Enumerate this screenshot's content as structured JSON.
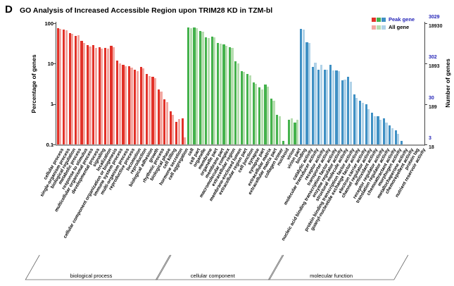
{
  "panel_label": "D",
  "title": "GO Analysis of Increased Accessible Region upon TRIM28 KD in TZM-bl",
  "legend": {
    "peak_label": "Peak gene",
    "all_label": "All gene"
  },
  "chart_data": {
    "type": "bar",
    "scale": "log",
    "ylim": [
      0.1,
      100
    ],
    "grid": false,
    "ylabel_left": "Percentage of genes",
    "ylabel_right": "Number of genes",
    "left_ticks": [
      "100",
      "10",
      "1",
      "0.1"
    ],
    "right_ticks": [
      {
        "peak": "3029",
        "all": "18930"
      },
      {
        "peak": "302",
        "all": "1893"
      },
      {
        "peak": "30",
        "all": "189"
      },
      {
        "peak": "3",
        "all": "18"
      }
    ],
    "series_names": [
      "Peak gene",
      "All gene"
    ],
    "groups": [
      {
        "name": "biological process",
        "peak_color": "#e23128",
        "all_color": "#f3a7a1",
        "categories": [
          "cellular process",
          "single-organism process",
          "biological regulation",
          "metabolic process",
          "response to stimulus",
          "multicellular organismal process",
          "developmental process",
          "signaling",
          "localization",
          "cellular component organization or biogenesis",
          "immune system process",
          "multi-organism process",
          "reproductive process",
          "locomotion",
          "reproduction",
          "biological adhesion",
          "growth",
          "rhythmic process",
          "biological phase",
          "cell killing",
          "hormone secretion",
          "cell aggregation"
        ],
        "peak": [
          75,
          70,
          57,
          48,
          36,
          29,
          28.5,
          25.5,
          25,
          27.5,
          12,
          9.5,
          8.7,
          7.2,
          8.2,
          5.5,
          4.8,
          2.3,
          1.3,
          0.65,
          0.36,
          0.45
        ],
        "all": [
          72,
          67,
          54,
          51,
          33,
          27,
          25,
          24,
          24,
          26,
          10,
          8.5,
          8.0,
          6.5,
          7.5,
          5.0,
          4.4,
          2.0,
          1.1,
          0.55,
          0.42,
          0.15
        ]
      },
      {
        "name": "cellular component",
        "peak_color": "#44b24c",
        "all_color": "#b6ddb0",
        "categories": [
          "cell",
          "cell part",
          "organelle",
          "membrane",
          "organelle part",
          "membrane part",
          "macromolecular complex",
          "extracellular region",
          "membrane-enclosed lumen",
          "extracellular region part",
          "cell junction",
          "synapse",
          "synapse part",
          "extracellular matrix",
          "extracellular matrix part",
          "collagen trimer",
          "nucleoid",
          "virion",
          "virion part"
        ],
        "peak": [
          80,
          80,
          65,
          45,
          47,
          33,
          30,
          26,
          11.5,
          6.5,
          5.5,
          3.4,
          2.6,
          3.0,
          1.35,
          0.55,
          0.12,
          0.4,
          0.35
        ],
        "all": [
          77,
          77,
          61,
          43,
          44,
          31,
          28,
          24.5,
          10,
          6.2,
          5.1,
          3.1,
          2.3,
          2.7,
          1.2,
          0.5,
          0.1,
          0.45,
          0.4
        ]
      },
      {
        "name": "molecular function",
        "peak_color": "#3f90c4",
        "all_color": "#b0d2e8",
        "categories": [
          "binding",
          "catalytic activity",
          "molecular transducer activity",
          "receptor activity",
          "transporter activity",
          "nucleic acid binding transcription factor activity",
          "enzyme regulator activity",
          "structural molecule activity",
          "protein binding transcription factor activity",
          "guanyl-nucleotide exchange factor activity",
          "electron carrier activity",
          "channel regulator activity",
          "antioxidant activity",
          "receptor regulator activity",
          "translation regulator activity",
          "chemoattractant activity",
          "morphogen activity",
          "metallochaperone activity",
          "chemorepellent activity",
          "protein tag",
          "nutrient reservoir activity"
        ],
        "peak": [
          73,
          34,
          8.2,
          7.2,
          7.1,
          9.3,
          6.7,
          3.9,
          4.8,
          1.7,
          1.2,
          0.97,
          0.6,
          0.5,
          0.45,
          0.3,
          0.22,
          0.12,
          0.1,
          0.1,
          0.1
        ],
        "all": [
          70,
          33,
          10.7,
          9.5,
          7.1,
          6.7,
          6.4,
          4.1,
          3.5,
          1.4,
          1.05,
          0.76,
          0.5,
          0.4,
          0.35,
          0.25,
          0.18,
          0.1,
          0.1,
          0.1,
          0.1
        ]
      }
    ]
  }
}
